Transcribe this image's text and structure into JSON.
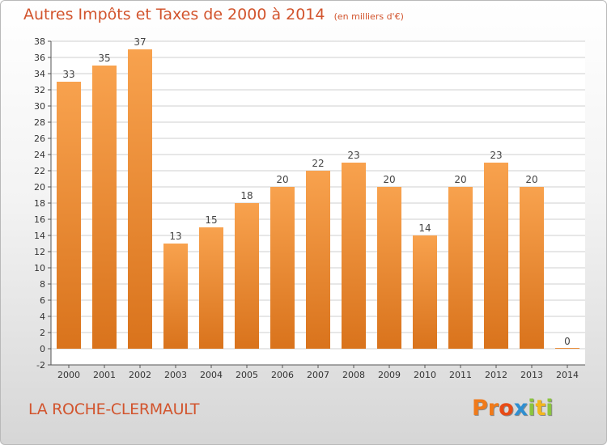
{
  "header": {
    "title": "Autres Impôts et Taxes de 2000 à 2014",
    "subtitle": "(en milliers d'€)"
  },
  "footer": {
    "commune": "LA ROCHE-CLERMAULT",
    "logo_letters": [
      "P",
      "r",
      "o",
      "x",
      "i",
      "t",
      "i"
    ],
    "logo_colors": [
      "#f07a1a",
      "#f07a1a",
      "#e84b16",
      "#2f8fd1",
      "#8bc43f",
      "#f3b61d",
      "#8bc43f"
    ]
  },
  "colors": {
    "bar_light": "#f8a24e",
    "bar_dark": "#d9731c",
    "grid": "#cfcfcf",
    "plot_bg": "#ffffff"
  },
  "chart_data": {
    "type": "bar",
    "categories": [
      "2000",
      "2001",
      "2002",
      "2003",
      "2004",
      "2005",
      "2006",
      "2007",
      "2008",
      "2009",
      "2010",
      "2011",
      "2012",
      "2013",
      "2014"
    ],
    "values": [
      33,
      35,
      37,
      13,
      15,
      18,
      20,
      22,
      23,
      20,
      14,
      20,
      23,
      20,
      0
    ],
    "title": "Autres Impôts et Taxes de 2000 à 2014",
    "ylim": [
      -2,
      38
    ],
    "yticks": [
      -2,
      0,
      2,
      4,
      6,
      8,
      10,
      12,
      14,
      16,
      18,
      20,
      22,
      24,
      26,
      28,
      30,
      32,
      34,
      36,
      38
    ],
    "grid": true
  }
}
